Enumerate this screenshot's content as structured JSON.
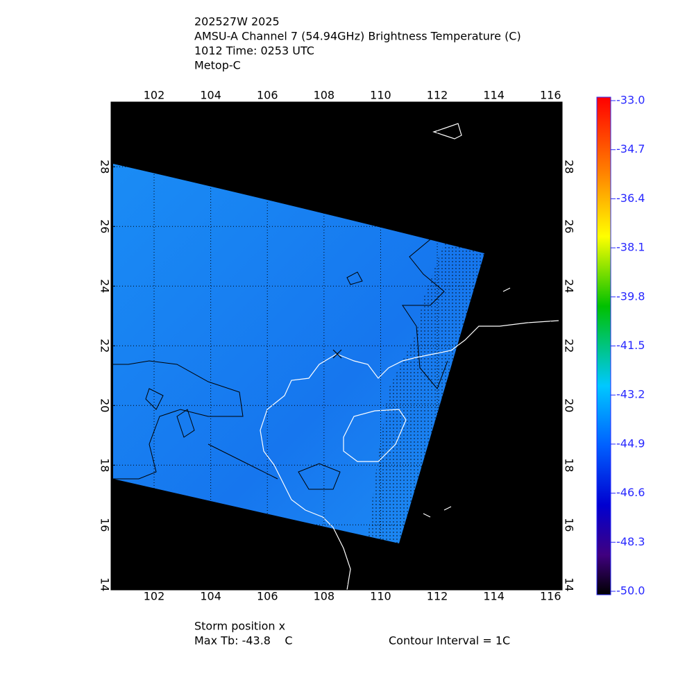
{
  "header": {
    "lines": [
      "202527W 2025",
      "AMSU-A Channel 7 (54.94GHz) Brightness Temperature (C)",
      "1012 Time: 0253 UTC",
      "Metop-C"
    ]
  },
  "map": {
    "xlim": [
      100.48,
      116.41
    ],
    "ylim": [
      13.82,
      30.17
    ],
    "xticks": [
      102,
      104,
      106,
      108,
      110,
      112,
      114,
      116
    ],
    "yticks": [
      14,
      16,
      18,
      20,
      22,
      24,
      26,
      28
    ]
  },
  "colorbar": {
    "lim": [
      -50,
      -33
    ],
    "ticks": [
      {
        "value": -33,
        "label": "-33.0"
      },
      {
        "value": -34.7,
        "label": "-34.7"
      },
      {
        "value": -36.4,
        "label": "-36.4"
      },
      {
        "value": -38.1,
        "label": "-38.1"
      },
      {
        "value": -39.8,
        "label": "-39.8"
      },
      {
        "value": -41.5,
        "label": "-41.5"
      },
      {
        "value": -43.2,
        "label": "-43.2"
      },
      {
        "value": -44.9,
        "label": "-44.9"
      },
      {
        "value": -46.6,
        "label": "-46.6"
      },
      {
        "value": -48.3,
        "label": "-48.3"
      },
      {
        "value": -50,
        "label": "-50.0"
      }
    ]
  },
  "footer": {
    "storm": "Storm position x",
    "max_tb": "Max Tb: -43.8    C",
    "contour": "Contour Interval = 1C"
  }
}
